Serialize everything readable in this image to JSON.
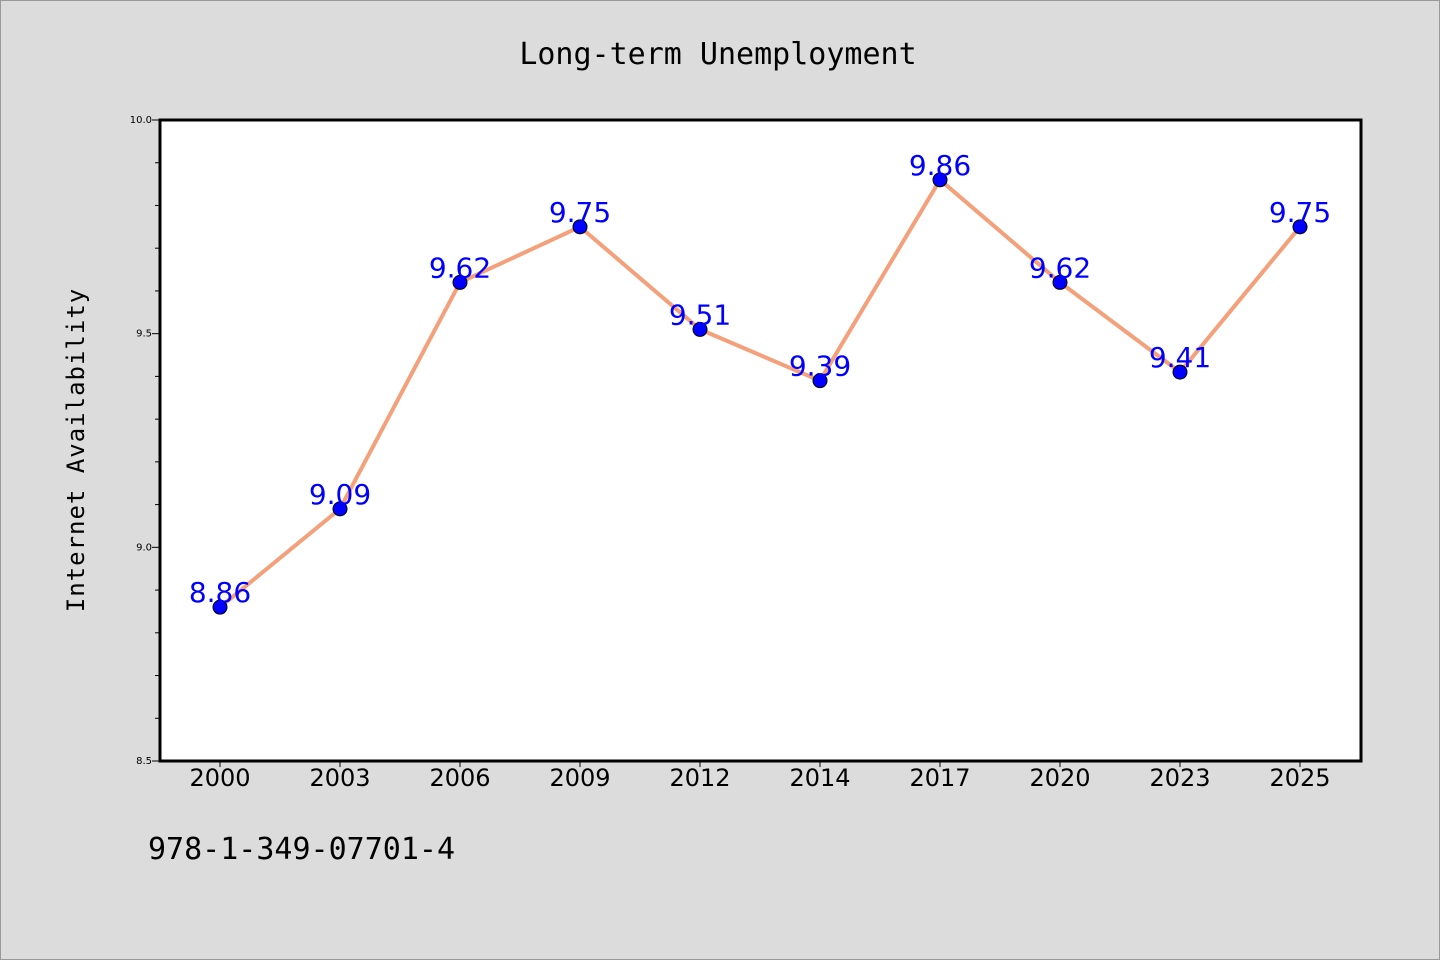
{
  "chart_data": {
    "type": "line",
    "title": "Long-term Unemployment",
    "xlabel": "",
    "ylabel": "Internet Availability",
    "categories": [
      "2000",
      "2003",
      "2006",
      "2009",
      "2012",
      "2014",
      "2017",
      "2020",
      "2023",
      "2025"
    ],
    "series": [
      {
        "values": [
          8.86,
          9.09,
          9.62,
          9.75,
          9.51,
          9.39,
          9.86,
          9.62,
          9.41,
          9.75
        ],
        "labels": [
          "8.86",
          "9.09",
          "9.62",
          "9.75",
          "9.51",
          "9.39",
          "9.86",
          "9.62",
          "9.41",
          "9.75"
        ],
        "line_color": "#f4a07a",
        "marker_color": "#0000ff"
      }
    ],
    "ylim": [
      8.5,
      10.0
    ],
    "yticks": [
      "8.5",
      "9.0",
      "9.5",
      "10.0"
    ],
    "grid": false,
    "legend": "none"
  },
  "footer": {
    "id_text": "978-1-349-07701-4"
  },
  "colors": {
    "background": "#dcdcdc",
    "plot_background": "#ffffff",
    "line": "#f4a07a",
    "marker": "#0000ff",
    "data_label": "#0000ff"
  }
}
